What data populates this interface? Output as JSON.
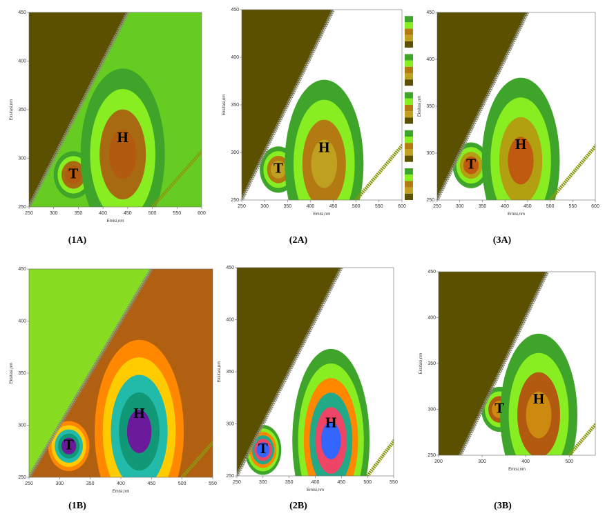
{
  "chart_data": [
    {
      "type": "contour",
      "panel": "(1A)",
      "xlabel": "Emisi,nm",
      "ylabel": "Eksitasi,nm",
      "xlim": [
        250,
        600
      ],
      "ylim": [
        250,
        450
      ],
      "xticks": [
        250,
        300,
        350,
        400,
        450,
        500,
        550,
        600
      ],
      "yticks": [
        250,
        300,
        350,
        400,
        450
      ],
      "background": "#5a5000",
      "colors": [
        "#66cc22",
        "#3fa52a",
        "#88ee22",
        "#a86a10",
        "#b25a10"
      ],
      "annotations": [
        {
          "text": "T",
          "x": 340,
          "y": 283
        },
        {
          "text": "H",
          "x": 440,
          "y": 320
        }
      ]
    },
    {
      "type": "contour",
      "panel": "(2A)",
      "xlabel": "Emisi,nm",
      "ylabel": "Eksitasi,nm",
      "xlim": [
        250,
        600
      ],
      "ylim": [
        250,
        450
      ],
      "xticks": [
        250,
        300,
        350,
        400,
        450,
        500,
        550,
        600
      ],
      "yticks": [
        250,
        300,
        350,
        400,
        450
      ],
      "background": "#5a5000",
      "colors": [
        "#ffffff",
        "#3fa52a",
        "#88ee22",
        "#b27a10",
        "#c0a020"
      ],
      "annotations": [
        {
          "text": "T",
          "x": 330,
          "y": 282
        },
        {
          "text": "H",
          "x": 430,
          "y": 304
        }
      ]
    },
    {
      "type": "contour",
      "panel": "(3A)",
      "xlabel": "Emisi,nm",
      "ylabel": "Eksitasi,nm",
      "xlim": [
        250,
        600
      ],
      "ylim": [
        250,
        450
      ],
      "xticks": [
        250,
        300,
        350,
        400,
        450,
        500,
        550,
        600
      ],
      "yticks": [
        250,
        300,
        350,
        400,
        450
      ],
      "background": "#5a5000",
      "colors": [
        "#ffffff",
        "#3fa52a",
        "#88ee22",
        "#b2a010",
        "#c05a10"
      ],
      "annotations": [
        {
          "text": "T",
          "x": 325,
          "y": 287
        },
        {
          "text": "H",
          "x": 435,
          "y": 308
        }
      ]
    },
    {
      "type": "contour",
      "panel": "(1B)",
      "xlabel": "Emisi,nm",
      "ylabel": "Eksitasi,nm",
      "xlim": [
        250,
        550
      ],
      "ylim": [
        250,
        450
      ],
      "xticks": [
        250,
        300,
        350,
        400,
        450,
        500,
        550
      ],
      "yticks": [
        250,
        300,
        350,
        400,
        450
      ],
      "background": "#88dd22",
      "colors": [
        "#b06010",
        "#ff8800",
        "#ffcc00",
        "#22bbaa",
        "#119977",
        "#6a1a9a"
      ],
      "annotations": [
        {
          "text": "T",
          "x": 315,
          "y": 280
        },
        {
          "text": "H",
          "x": 430,
          "y": 310
        }
      ]
    },
    {
      "type": "contour",
      "panel": "(2B)",
      "xlabel": "Emisi,nm",
      "ylabel": "Eksitasi,nm",
      "xlim": [
        250,
        550
      ],
      "ylim": [
        250,
        450
      ],
      "xticks": [
        250,
        300,
        350,
        400,
        450,
        500,
        550
      ],
      "yticks": [
        250,
        300,
        350,
        400,
        450
      ],
      "background": "#5a5000",
      "colors": [
        "#ffffff",
        "#3fa52a",
        "#88ee22",
        "#ff8800",
        "#22aa88",
        "#ee4466",
        "#3366ff"
      ],
      "annotations": [
        {
          "text": "T",
          "x": 300,
          "y": 275
        },
        {
          "text": "H",
          "x": 430,
          "y": 300
        }
      ]
    },
    {
      "type": "contour",
      "panel": "(3B)",
      "xlabel": "Emisi,nm",
      "ylabel": "Eksitasi,nm",
      "xlim": [
        200,
        560
      ],
      "ylim": [
        250,
        450
      ],
      "xticks": [
        200,
        300,
        400,
        500
      ],
      "yticks": [
        250,
        300,
        350,
        400,
        450
      ],
      "background": "#5a5000",
      "colors": [
        "#ffffff",
        "#3fa52a",
        "#88ee22",
        "#b25a10",
        "#cc8a10"
      ],
      "annotations": [
        {
          "text": "T",
          "x": 340,
          "y": 300
        },
        {
          "text": "H",
          "x": 430,
          "y": 310
        }
      ]
    }
  ]
}
